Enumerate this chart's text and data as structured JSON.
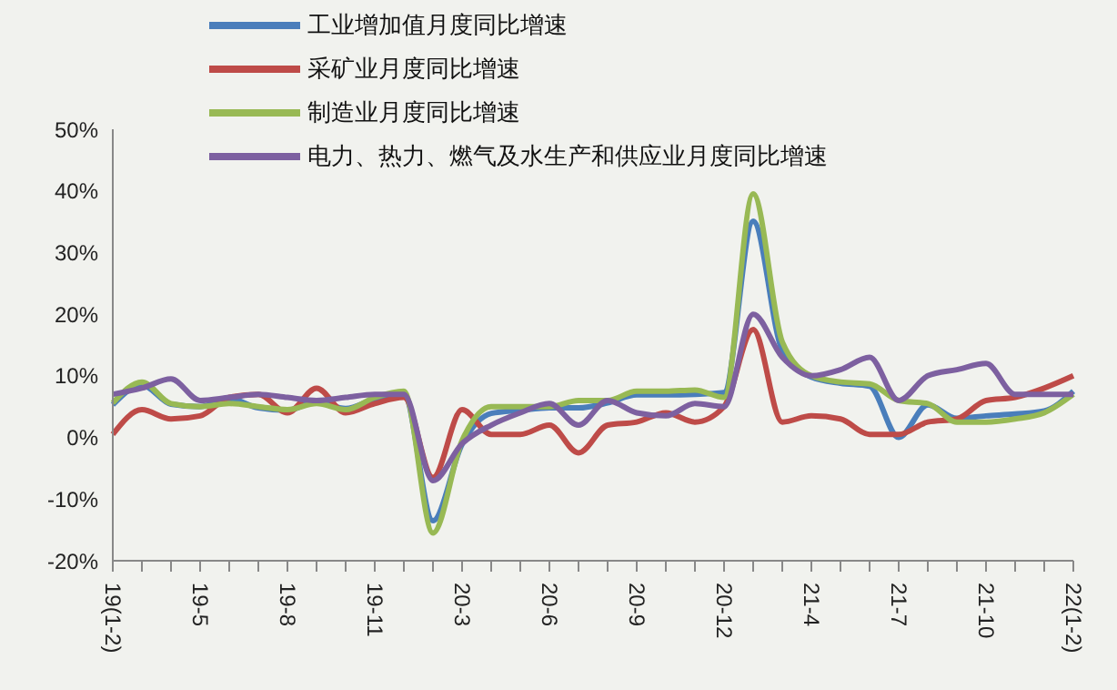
{
  "chart_data": {
    "type": "line",
    "categories": [
      "19(1-2)",
      null,
      null,
      "19-5",
      null,
      null,
      "19-8",
      null,
      null,
      "19-11",
      null,
      null,
      "20-3",
      null,
      null,
      "20-6",
      null,
      null,
      "20-9",
      null,
      null,
      "20-12",
      null,
      null,
      "21-4",
      null,
      null,
      "21-7",
      null,
      null,
      "21-10",
      null,
      null,
      "22(1-2)"
    ],
    "series": [
      {
        "name": "工业增加值月度同比增速",
        "color": "#4a7ebb",
        "values": [
          5.3,
          8.5,
          5.4,
          5.0,
          6.3,
          4.8,
          4.4,
          5.8,
          4.7,
          6.2,
          6.9,
          -13.5,
          -1.1,
          3.9,
          4.4,
          4.8,
          4.8,
          5.6,
          6.9,
          6.9,
          7.0,
          7.3,
          35.1,
          14.1,
          9.8,
          8.8,
          8.3,
          0,
          5.3,
          3.1,
          3.5,
          3.8,
          4.3,
          7.5
        ]
      },
      {
        "name": "采矿业月度同比增速",
        "color": "#be4b48",
        "values": [
          0.5,
          4.5,
          3,
          3.5,
          6.5,
          7,
          4,
          8,
          4,
          5.5,
          6.5,
          -6.5,
          4.5,
          0.5,
          0.5,
          2,
          -2.5,
          2,
          2.5,
          4,
          2.5,
          5,
          17.5,
          2.5,
          3.5,
          3,
          0.5,
          0.5,
          2.5,
          3,
          6,
          6.5,
          8,
          10
        ]
      },
      {
        "name": "制造业月度同比增速",
        "color": "#98b954",
        "values": [
          5.6,
          9,
          5.5,
          5,
          5.5,
          5,
          4.5,
          5.5,
          4.5,
          6.5,
          7.5,
          -15.5,
          -0.5,
          5,
          5,
          5,
          6,
          6,
          7.5,
          7.5,
          7.7,
          6.5,
          39.5,
          15.5,
          10,
          9,
          8.7,
          6,
          5.5,
          2.5,
          2.5,
          3,
          4,
          7
        ]
      },
      {
        "name": "电力、热力、燃气及水生产和供应业月度同比增速",
        "color": "#7d60a0",
        "values": [
          7,
          8,
          9.5,
          6,
          6.5,
          7,
          6.5,
          6,
          6.5,
          7,
          7,
          -7,
          -1,
          2,
          4,
          5.5,
          2,
          6,
          4,
          3.5,
          5.5,
          5,
          20,
          13,
          10,
          11,
          13,
          6,
          10,
          11,
          12,
          7,
          7,
          7
        ]
      }
    ],
    "ylim": [
      -20,
      50
    ],
    "yticks": [
      {
        "value": -20,
        "label": "-20%"
      },
      {
        "value": -10,
        "label": "-10%"
      },
      {
        "value": 0,
        "label": "0%"
      },
      {
        "value": 10,
        "label": "10%"
      },
      {
        "value": 20,
        "label": "20%"
      },
      {
        "value": 30,
        "label": "30%"
      },
      {
        "value": 40,
        "label": "40%"
      },
      {
        "value": 50,
        "label": "50%"
      }
    ],
    "legend": "top",
    "marker": "none",
    "line_style": "solid"
  }
}
